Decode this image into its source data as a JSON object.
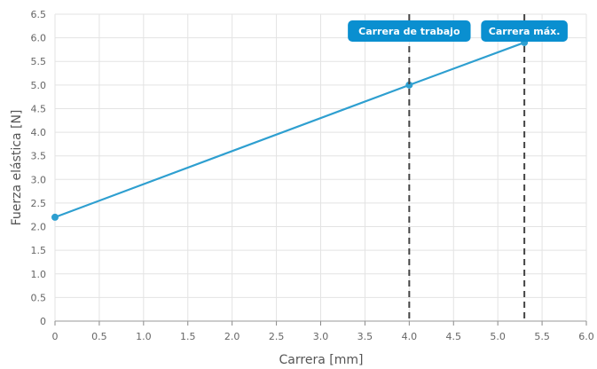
{
  "chart_data": {
    "type": "line",
    "xlabel": "Carrera [mm]",
    "ylabel": "Fuerza elástica [N]",
    "xlim": [
      0,
      6.0
    ],
    "ylim": [
      0,
      6.5
    ],
    "x_ticks": [
      "0",
      "0.5",
      "1.0",
      "1.5",
      "2.0",
      "2.5",
      "3.0",
      "3.5",
      "4.0",
      "4.5",
      "5.0",
      "5.5",
      "6.0"
    ],
    "y_ticks": [
      "0",
      "0.5",
      "1.0",
      "1.5",
      "2.0",
      "2.5",
      "3.0",
      "3.5",
      "4.0",
      "4.5",
      "5.0",
      "5.5",
      "6.0",
      "6.5"
    ],
    "grid": true,
    "series": [
      {
        "color": "#2e9fd0",
        "points": [
          {
            "x": 0,
            "y": 2.2
          },
          {
            "x": 4.0,
            "y": 5.0
          },
          {
            "x": 5.3,
            "y": 5.9
          }
        ]
      }
    ],
    "vertical_markers": [
      {
        "x": 4.0,
        "label": "Carrera de trabajo"
      },
      {
        "x": 5.3,
        "label": "Carrera máx."
      }
    ],
    "colors": {
      "line": "#2e9fd0",
      "marker_badge": "#0a8fd0",
      "marker_line": "#444444",
      "grid": "#e3e3e3"
    }
  }
}
